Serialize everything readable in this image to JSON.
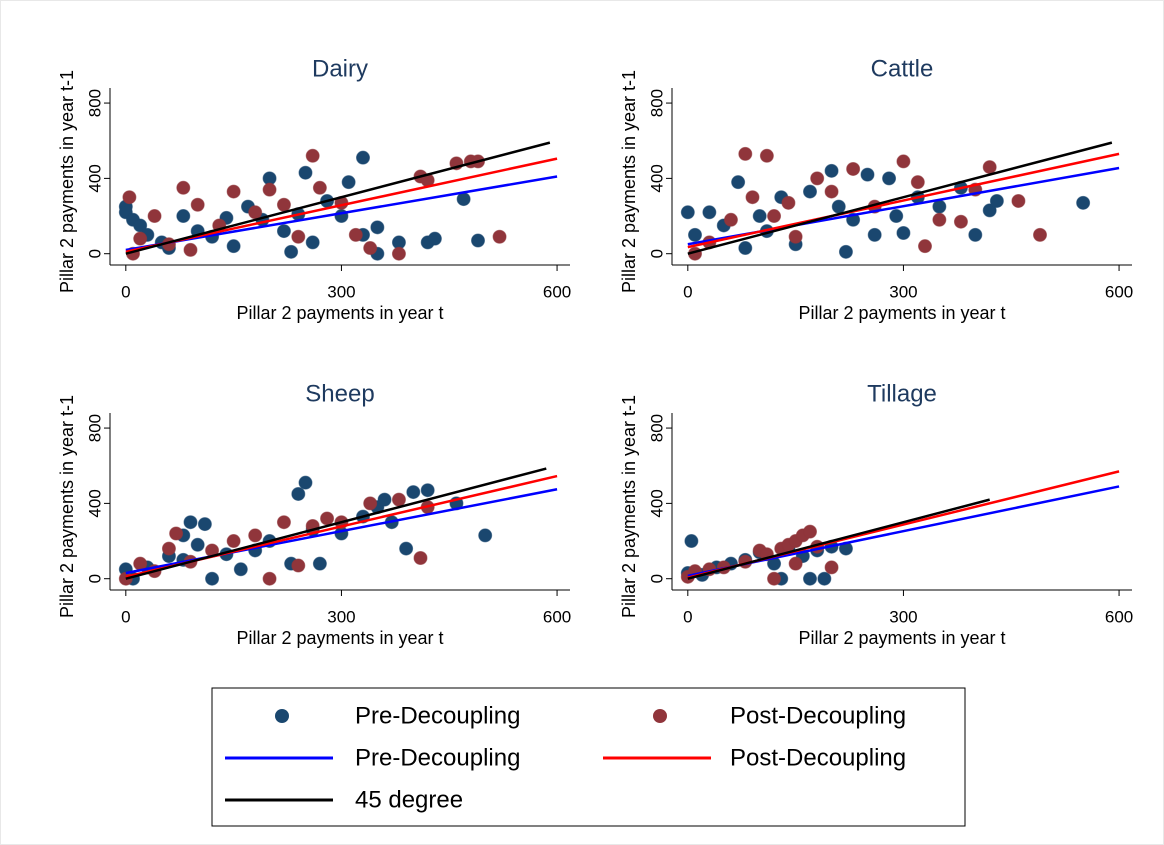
{
  "chart_data": [
    {
      "type": "scatter",
      "title": "Dairy",
      "xlabel": "Pillar 2 payments in year t",
      "ylabel": "Pillar 2 payments in year t-1",
      "xlim": [
        -22,
        618
      ],
      "ylim": [
        -60,
        880
      ],
      "xticks": [
        0,
        300,
        600
      ],
      "yticks": [
        0,
        400,
        800
      ],
      "series": [
        {
          "mode": "markers",
          "color": "#1a476f",
          "x": [
            0,
            0,
            10,
            20,
            30,
            50,
            60,
            80,
            100,
            120,
            150,
            170,
            190,
            200,
            220,
            240,
            250,
            260,
            280,
            300,
            310,
            330,
            350,
            350,
            380,
            420,
            430,
            470,
            490,
            330,
            230,
            140
          ],
          "y": [
            250,
            220,
            180,
            150,
            100,
            60,
            30,
            200,
            120,
            90,
            40,
            250,
            180,
            400,
            120,
            210,
            430,
            60,
            280,
            200,
            380,
            100,
            0,
            140,
            60,
            60,
            80,
            290,
            70,
            510,
            10,
            190
          ]
        },
        {
          "mode": "markers",
          "color": "#90353b",
          "x": [
            5,
            10,
            20,
            40,
            60,
            80,
            100,
            130,
            150,
            180,
            200,
            220,
            240,
            260,
            270,
            300,
            320,
            340,
            380,
            410,
            420,
            460,
            480,
            490,
            520,
            90
          ],
          "y": [
            300,
            0,
            80,
            200,
            50,
            350,
            260,
            150,
            330,
            220,
            340,
            260,
            90,
            520,
            350,
            270,
            100,
            30,
            0,
            410,
            390,
            480,
            490,
            490,
            90,
            20
          ]
        },
        {
          "mode": "lines",
          "color": "#0000ff",
          "x": [
            0,
            600
          ],
          "y": [
            20,
            410
          ]
        },
        {
          "mode": "lines",
          "color": "#ff0000",
          "x": [
            0,
            600
          ],
          "y": [
            10,
            505
          ]
        },
        {
          "mode": "lines",
          "color": "#000000",
          "x": [
            0,
            590
          ],
          "y": [
            0,
            590
          ]
        }
      ]
    },
    {
      "type": "scatter",
      "title": "Cattle",
      "xlabel": "Pillar 2 payments in year t",
      "ylabel": "Pillar 2 payments in year t-1",
      "xlim": [
        -22,
        618
      ],
      "ylim": [
        -60,
        880
      ],
      "xticks": [
        0,
        300,
        600
      ],
      "yticks": [
        0,
        400,
        800
      ],
      "series": [
        {
          "mode": "markers",
          "color": "#1a476f",
          "x": [
            0,
            10,
            30,
            50,
            70,
            80,
            100,
            110,
            130,
            150,
            170,
            200,
            210,
            230,
            250,
            260,
            280,
            300,
            320,
            350,
            380,
            400,
            420,
            430,
            550,
            220,
            290
          ],
          "y": [
            220,
            100,
            220,
            150,
            380,
            30,
            200,
            120,
            300,
            50,
            330,
            440,
            250,
            180,
            420,
            100,
            400,
            110,
            300,
            250,
            350,
            100,
            230,
            280,
            270,
            10,
            200
          ]
        },
        {
          "mode": "markers",
          "color": "#90353b",
          "x": [
            10,
            30,
            60,
            80,
            90,
            110,
            120,
            150,
            180,
            200,
            230,
            260,
            300,
            320,
            350,
            380,
            400,
            420,
            460,
            490,
            330,
            140
          ],
          "y": [
            0,
            60,
            180,
            530,
            300,
            520,
            200,
            90,
            400,
            330,
            450,
            250,
            490,
            380,
            180,
            170,
            340,
            460,
            280,
            100,
            40,
            270
          ]
        },
        {
          "mode": "lines",
          "color": "#0000ff",
          "x": [
            0,
            600
          ],
          "y": [
            50,
            455
          ]
        },
        {
          "mode": "lines",
          "color": "#ff0000",
          "x": [
            0,
            600
          ],
          "y": [
            35,
            530
          ]
        },
        {
          "mode": "lines",
          "color": "#000000",
          "x": [
            0,
            590
          ],
          "y": [
            0,
            590
          ]
        }
      ]
    },
    {
      "type": "scatter",
      "title": "Sheep",
      "xlabel": "Pillar 2 payments in year t",
      "ylabel": "Pillar 2 payments in year t-1",
      "xlim": [
        -22,
        618
      ],
      "ylim": [
        -60,
        880
      ],
      "xticks": [
        0,
        300,
        600
      ],
      "yticks": [
        0,
        400,
        800
      ],
      "series": [
        {
          "mode": "markers",
          "color": "#1a476f",
          "x": [
            0,
            10,
            30,
            60,
            80,
            90,
            100,
            110,
            120,
            140,
            160,
            180,
            200,
            230,
            240,
            250,
            260,
            270,
            300,
            330,
            350,
            360,
            370,
            390,
            400,
            420,
            460,
            500,
            80
          ],
          "y": [
            50,
            0,
            60,
            120,
            230,
            300,
            180,
            290,
            0,
            130,
            50,
            150,
            200,
            80,
            450,
            510,
            260,
            80,
            240,
            330,
            380,
            420,
            300,
            160,
            460,
            470,
            400,
            230,
            100
          ]
        },
        {
          "mode": "markers",
          "color": "#90353b",
          "x": [
            0,
            20,
            40,
            70,
            90,
            120,
            150,
            180,
            200,
            220,
            240,
            260,
            280,
            300,
            340,
            380,
            410,
            420,
            60
          ],
          "y": [
            0,
            80,
            40,
            240,
            90,
            150,
            200,
            230,
            0,
            300,
            70,
            280,
            320,
            300,
            400,
            420,
            110,
            380,
            160
          ]
        },
        {
          "mode": "lines",
          "color": "#0000ff",
          "x": [
            0,
            600
          ],
          "y": [
            30,
            475
          ]
        },
        {
          "mode": "lines",
          "color": "#ff0000",
          "x": [
            0,
            600
          ],
          "y": [
            10,
            545
          ]
        },
        {
          "mode": "lines",
          "color": "#000000",
          "x": [
            0,
            585
          ],
          "y": [
            0,
            585
          ]
        }
      ]
    },
    {
      "type": "scatter",
      "title": "Tillage",
      "xlabel": "Pillar 2 payments in year t",
      "ylabel": "Pillar 2 payments in year t-1",
      "xlim": [
        -22,
        618
      ],
      "ylim": [
        -60,
        880
      ],
      "xticks": [
        0,
        300,
        600
      ],
      "yticks": [
        0,
        400,
        800
      ],
      "series": [
        {
          "mode": "markers",
          "color": "#1a476f",
          "x": [
            0,
            5,
            20,
            40,
            60,
            80,
            100,
            120,
            140,
            160,
            170,
            180,
            190,
            200,
            220,
            130
          ],
          "y": [
            30,
            200,
            20,
            60,
            80,
            100,
            140,
            80,
            160,
            120,
            0,
            150,
            0,
            170,
            160,
            0
          ]
        },
        {
          "mode": "markers",
          "color": "#90353b",
          "x": [
            0,
            10,
            30,
            50,
            80,
            100,
            110,
            130,
            140,
            150,
            160,
            170,
            180,
            200,
            120,
            150
          ],
          "y": [
            10,
            40,
            50,
            60,
            90,
            150,
            130,
            160,
            180,
            200,
            230,
            250,
            170,
            60,
            0,
            80
          ]
        },
        {
          "mode": "lines",
          "color": "#0000ff",
          "x": [
            0,
            600
          ],
          "y": [
            15,
            490
          ]
        },
        {
          "mode": "lines",
          "color": "#ff0000",
          "x": [
            0,
            600
          ],
          "y": [
            5,
            570
          ]
        },
        {
          "mode": "lines",
          "color": "#000000",
          "x": [
            0,
            420
          ],
          "y": [
            0,
            420
          ]
        }
      ]
    }
  ],
  "legend": {
    "entries": [
      {
        "label": "Pre-Decoupling",
        "kind": "marker",
        "color": "#1a476f"
      },
      {
        "label": "Post-Decoupling",
        "kind": "marker",
        "color": "#90353b"
      },
      {
        "label": "Pre-Decoupling",
        "kind": "line",
        "color": "#0000ff"
      },
      {
        "label": "Post-Decoupling",
        "kind": "line",
        "color": "#ff0000"
      },
      {
        "label": "45 degree",
        "kind": "line",
        "color": "#000000"
      }
    ]
  }
}
